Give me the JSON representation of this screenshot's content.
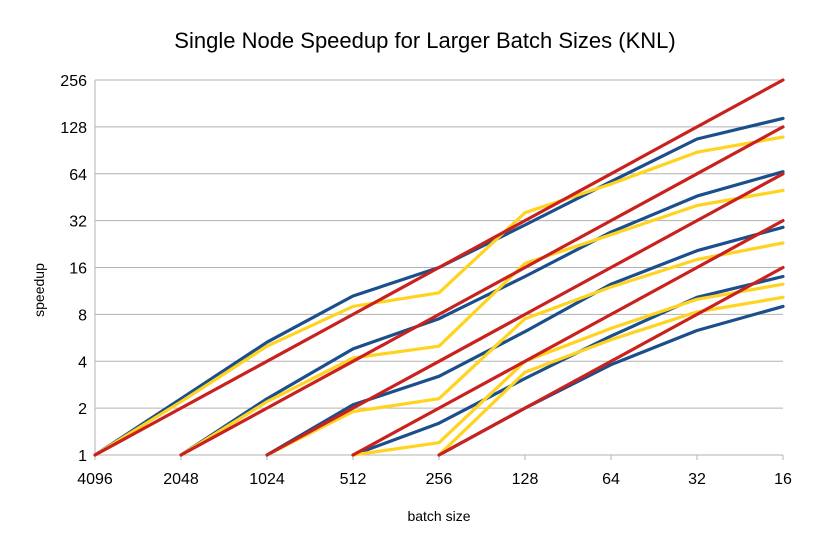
{
  "chart_data": {
    "type": "line",
    "title": "Single Node Speedup for Larger Batch Sizes (KNL)",
    "xlabel": "batch size",
    "ylabel": "speedup",
    "y_scale": "log2",
    "ylim": [
      1,
      256
    ],
    "y_ticks": [
      1,
      2,
      4,
      8,
      16,
      32,
      64,
      128,
      256
    ],
    "grid": "horizontal",
    "legend": "none",
    "categories": [
      "4096",
      "2048",
      "1024",
      "512",
      "256",
      "128",
      "64",
      "32",
      "16"
    ],
    "series": [
      {
        "name": "blue-from-4096",
        "color": "#1b4f8c",
        "values": [
          1,
          2.3,
          5.3,
          10.5,
          16,
          30,
          57,
          107,
          145
        ]
      },
      {
        "name": "yellow-from-4096",
        "color": "#ffd320",
        "values": [
          1,
          2.2,
          5,
          9,
          11,
          36,
          55,
          88,
          110
        ]
      },
      {
        "name": "red-from-4096",
        "color": "#c9211e",
        "values": [
          1,
          2,
          4,
          8,
          16,
          32,
          64,
          128,
          256
        ]
      },
      {
        "name": "blue-from-2048",
        "color": "#1b4f8c",
        "values": [
          null,
          1,
          2.3,
          4.8,
          7.5,
          14,
          27,
          46,
          66
        ]
      },
      {
        "name": "yellow-from-2048",
        "color": "#ffd320",
        "values": [
          null,
          1,
          2.2,
          4.2,
          5,
          17,
          26,
          40,
          50
        ]
      },
      {
        "name": "red-from-2048",
        "color": "#c9211e",
        "values": [
          null,
          1,
          2,
          4,
          8,
          16,
          32,
          64,
          128
        ]
      },
      {
        "name": "blue-from-1024",
        "color": "#1b4f8c",
        "values": [
          null,
          null,
          1,
          2.1,
          3.2,
          6.2,
          12.5,
          20.5,
          29
        ]
      },
      {
        "name": "yellow-from-1024",
        "color": "#ffd320",
        "values": [
          null,
          null,
          1,
          1.9,
          2.3,
          7.5,
          12,
          18,
          23
        ]
      },
      {
        "name": "red-from-1024",
        "color": "#c9211e",
        "values": [
          null,
          null,
          1,
          2,
          4,
          8,
          16,
          32,
          64
        ]
      },
      {
        "name": "blue-from-512",
        "color": "#1b4f8c",
        "values": [
          null,
          null,
          null,
          1,
          1.6,
          3.1,
          5.8,
          10.3,
          14
        ]
      },
      {
        "name": "yellow-from-512",
        "color": "#ffd320",
        "values": [
          null,
          null,
          null,
          1,
          1.2,
          4,
          6.5,
          10,
          12.5
        ]
      },
      {
        "name": "red-from-512",
        "color": "#c9211e",
        "values": [
          null,
          null,
          null,
          1,
          2,
          4,
          8,
          16,
          32
        ]
      },
      {
        "name": "blue-from-256",
        "color": "#1b4f8c",
        "values": [
          null,
          null,
          null,
          null,
          1,
          2,
          3.8,
          6.3,
          9
        ]
      },
      {
        "name": "yellow-from-256",
        "color": "#ffd320",
        "values": [
          null,
          null,
          null,
          null,
          1,
          3.4,
          5.5,
          8.3,
          10.3
        ]
      },
      {
        "name": "red-from-256",
        "color": "#c9211e",
        "values": [
          null,
          null,
          null,
          null,
          1,
          2,
          4,
          8,
          16
        ]
      }
    ]
  }
}
